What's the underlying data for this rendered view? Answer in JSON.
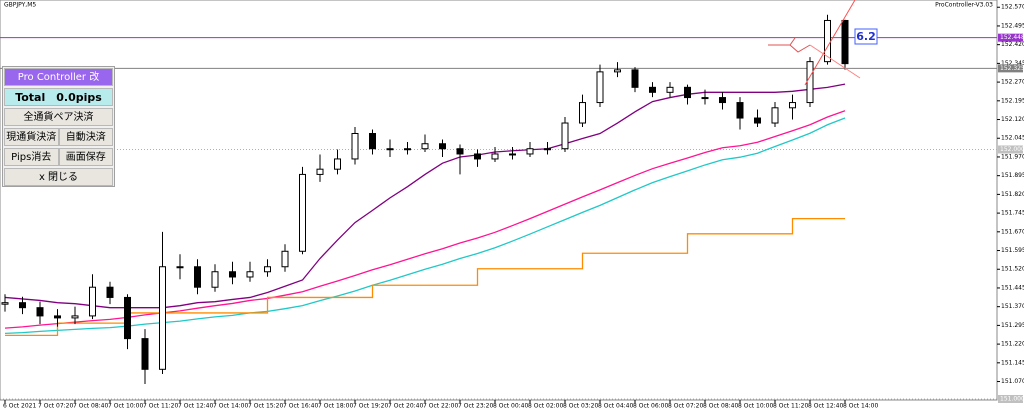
{
  "chart_data": {
    "type": "candlestick",
    "symbol": "GBPJPY,M5",
    "indicator_name": "ProController-V3.03",
    "annotation": "6.2",
    "candle_color": "#000000",
    "categories": [
      "6 Oct 2021",
      null,
      "7 Oct 07:20",
      null,
      "7 Oct 08:40",
      null,
      "7 Oct 10:00",
      null,
      "7 Oct 11:20",
      null,
      "7 Oct 12:40",
      null,
      "7 Oct 14:00",
      null,
      "7 Oct 15:20",
      null,
      "7 Oct 16:40",
      null,
      "7 Oct 18:00",
      null,
      "7 Oct 19:20",
      null,
      "7 Oct 20:40",
      null,
      "7 Oct 22:00",
      null,
      "7 Oct 23:20",
      null,
      "8 Oct 00:40",
      null,
      "8 Oct 02:00",
      null,
      "8 Oct 03:20",
      null,
      "8 Oct 04:40",
      null,
      "8 Oct 06:00",
      null,
      "8 Oct 07:20",
      null,
      "8 Oct 08:40",
      null,
      "8 Oct 10:00",
      null,
      "8 Oct 11:20",
      null,
      "8 Oct 12:40",
      null,
      "8 Oct 14:00"
    ],
    "candles": [
      [
        151.38,
        151.42,
        151.35,
        151.386
      ],
      [
        151.386,
        151.41,
        151.34,
        151.366
      ],
      [
        151.366,
        151.39,
        151.3,
        151.333
      ],
      [
        151.333,
        151.36,
        151.29,
        151.325
      ],
      [
        151.325,
        151.37,
        151.3,
        151.333
      ],
      [
        151.333,
        151.5,
        151.32,
        151.448
      ],
      [
        151.448,
        151.47,
        151.38,
        151.407
      ],
      [
        151.407,
        151.42,
        151.2,
        151.242
      ],
      [
        151.242,
        151.28,
        151.06,
        151.119
      ],
      [
        151.119,
        151.67,
        151.1,
        151.53
      ],
      [
        151.53,
        151.58,
        151.48,
        151.53
      ],
      [
        151.53,
        151.56,
        151.42,
        151.448
      ],
      [
        151.448,
        151.54,
        151.43,
        151.51
      ],
      [
        151.51,
        151.55,
        151.46,
        151.489
      ],
      [
        151.489,
        151.55,
        151.47,
        151.51
      ],
      [
        151.51,
        151.56,
        151.49,
        151.53
      ],
      [
        151.53,
        151.62,
        151.51,
        151.592
      ],
      [
        151.592,
        151.93,
        151.58,
        151.9
      ],
      [
        151.9,
        151.98,
        151.87,
        151.921
      ],
      [
        151.921,
        152.0,
        151.9,
        151.962
      ],
      [
        151.962,
        152.09,
        151.94,
        152.064
      ],
      [
        152.064,
        152.08,
        151.98,
        152.003
      ],
      [
        152.003,
        152.04,
        151.97,
        152.003
      ],
      [
        152.003,
        152.03,
        151.98,
        152.003
      ],
      [
        152.003,
        152.06,
        151.99,
        152.023
      ],
      [
        152.023,
        152.04,
        151.97,
        152.003
      ],
      [
        152.003,
        152.02,
        151.9,
        151.982
      ],
      [
        151.982,
        152.0,
        151.93,
        151.962
      ],
      [
        151.962,
        152.01,
        151.95,
        151.982
      ],
      [
        151.982,
        152.01,
        151.96,
        151.982
      ],
      [
        151.982,
        152.03,
        151.97,
        152.003
      ],
      [
        152.003,
        152.03,
        151.98,
        152.003
      ],
      [
        152.003,
        152.13,
        151.99,
        152.106
      ],
      [
        152.106,
        152.22,
        152.09,
        152.188
      ],
      [
        152.188,
        152.34,
        152.17,
        152.311
      ],
      [
        152.311,
        152.35,
        152.29,
        152.319
      ],
      [
        152.319,
        152.33,
        152.23,
        152.249
      ],
      [
        152.249,
        152.27,
        152.21,
        152.229
      ],
      [
        152.229,
        152.27,
        152.21,
        152.249
      ],
      [
        152.249,
        152.26,
        152.18,
        152.208
      ],
      [
        152.208,
        152.24,
        152.18,
        152.208
      ],
      [
        152.208,
        152.23,
        152.16,
        152.188
      ],
      [
        152.188,
        152.21,
        152.08,
        152.126
      ],
      [
        152.126,
        152.16,
        152.09,
        152.106
      ],
      [
        152.106,
        152.19,
        152.09,
        152.167
      ],
      [
        152.167,
        152.22,
        152.12,
        152.188
      ],
      [
        152.188,
        152.37,
        152.17,
        152.352
      ],
      [
        152.352,
        152.54,
        152.34,
        152.517
      ],
      [
        152.517,
        152.52,
        152.32,
        152.344
      ]
    ],
    "series": [
      {
        "color": "#800080",
        "values": [
          151.407,
          151.401,
          151.395,
          151.386,
          151.382,
          151.374,
          151.366,
          151.366,
          151.366,
          151.366,
          151.374,
          151.386,
          151.39,
          151.399,
          151.407,
          151.427,
          151.452,
          151.477,
          151.563,
          151.637,
          151.707,
          151.756,
          151.806,
          151.851,
          151.9,
          151.945,
          151.97,
          151.978,
          151.99,
          151.995,
          151.999,
          152.003,
          152.023,
          152.044,
          152.064,
          152.106,
          152.151,
          152.192,
          152.208,
          152.221,
          152.229,
          152.229,
          152.229,
          152.229,
          152.229,
          152.233,
          152.241,
          152.249,
          152.262
        ]
      },
      {
        "color": "#ff1493",
        "values": [
          151.284,
          151.289,
          151.296,
          151.302,
          151.308,
          151.314,
          151.319,
          151.327,
          151.337,
          151.345,
          151.353,
          151.364,
          151.374,
          151.383,
          151.395,
          151.403,
          151.416,
          151.43,
          151.452,
          151.473,
          151.495,
          151.518,
          151.538,
          151.56,
          151.582,
          151.602,
          151.625,
          151.645,
          151.668,
          151.695,
          151.723,
          151.752,
          151.781,
          151.81,
          151.838,
          151.867,
          151.896,
          151.923,
          151.945,
          151.966,
          151.988,
          152.007,
          152.015,
          152.029,
          152.052,
          152.075,
          152.099,
          152.13,
          152.155
        ]
      },
      {
        "color": "#20c8c8",
        "values": [
          151.263,
          151.266,
          151.271,
          151.275,
          151.279,
          151.283,
          151.286,
          151.292,
          151.3,
          151.306,
          151.312,
          151.321,
          151.329,
          151.335,
          151.345,
          151.351,
          151.362,
          151.374,
          151.394,
          151.413,
          151.433,
          151.456,
          151.476,
          151.498,
          151.52,
          151.54,
          151.563,
          151.583,
          151.606,
          151.633,
          151.661,
          151.69,
          151.719,
          151.748,
          151.776,
          151.807,
          151.838,
          151.867,
          151.891,
          151.914,
          151.938,
          151.959,
          151.969,
          151.985,
          152.012,
          152.038,
          152.065,
          152.099,
          152.126
        ]
      },
      {
        "color": "#ff8c00",
        "step": true,
        "values": [
          151.255,
          151.255,
          151.255,
          151.304,
          151.304,
          151.304,
          151.304,
          151.345,
          151.345,
          151.345,
          151.345,
          151.345,
          151.345,
          151.345,
          151.345,
          151.407,
          151.407,
          151.407,
          151.407,
          151.407,
          151.407,
          151.456,
          151.456,
          151.456,
          151.456,
          151.456,
          151.456,
          151.522,
          151.522,
          151.522,
          151.522,
          151.522,
          151.522,
          151.584,
          151.584,
          151.584,
          151.584,
          151.584,
          151.584,
          151.662,
          151.662,
          151.662,
          151.662,
          151.662,
          151.662,
          151.723,
          151.723,
          151.723,
          151.723
        ]
      }
    ],
    "price_lines": [
      {
        "value": 152.448,
        "label": "152.448",
        "color": "#9933cc",
        "style": "solid"
      },
      {
        "value": 152.325,
        "label": "152.325",
        "color": "#808080",
        "style": "solid"
      },
      {
        "value": 152.0,
        "label": "152.000",
        "color": "#b0b0b0",
        "style": "dotted"
      },
      {
        "value": 151.0,
        "label": "151.000",
        "color": "#b0b0b0",
        "style": "dotted"
      }
    ],
    "ylim": [
      150.996,
      152.599
    ],
    "yticks": [
      {
        "value": 152.57,
        "label": "152.570"
      },
      {
        "value": 152.495,
        "label": "152.495"
      },
      {
        "value": 152.42,
        "label": "152.420"
      },
      {
        "value": 152.345,
        "label": "152.345"
      },
      {
        "value": 152.27,
        "label": "152.270"
      },
      {
        "value": 152.195,
        "label": "152.195"
      },
      {
        "value": 152.12,
        "label": "152.120"
      },
      {
        "value": 152.045,
        "label": "152.045"
      },
      {
        "value": 151.97,
        "label": "151.970"
      },
      {
        "value": 151.895,
        "label": "151.895"
      },
      {
        "value": 151.82,
        "label": "151.820"
      },
      {
        "value": 151.745,
        "label": "151.745"
      },
      {
        "value": 151.67,
        "label": "151.670"
      },
      {
        "value": 151.595,
        "label": "151.595"
      },
      {
        "value": 151.52,
        "label": "151.520"
      },
      {
        "value": 151.445,
        "label": "151.445"
      },
      {
        "value": 151.37,
        "label": "151.370"
      },
      {
        "value": 151.295,
        "label": "151.295"
      },
      {
        "value": 151.22,
        "label": "151.220"
      },
      {
        "value": 151.145,
        "label": "151.145"
      },
      {
        "value": 151.07,
        "label": "151.070"
      }
    ]
  },
  "panel": {
    "title": "Pro Controller 改",
    "total": "Total　0.0pips",
    "buttons": [
      "全通貨ペア決済",
      "現通貨決済",
      "自動決済",
      "Pips消去",
      "画面保存",
      "x 閉じる"
    ]
  }
}
